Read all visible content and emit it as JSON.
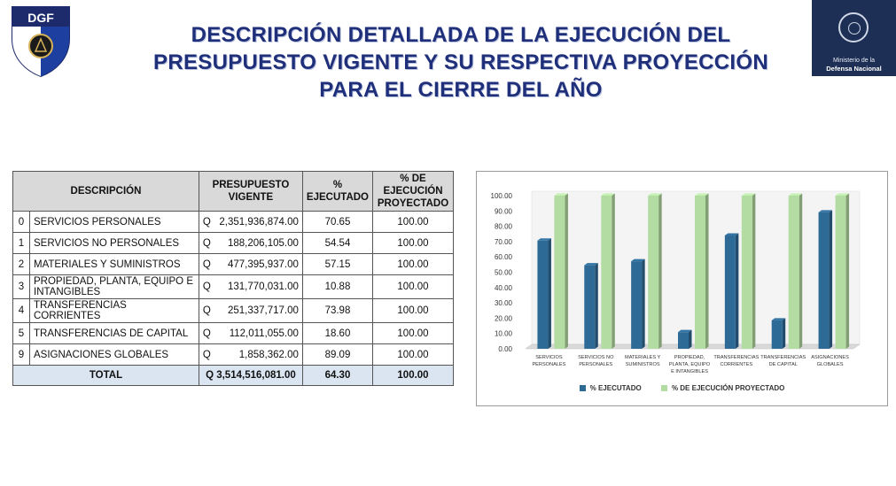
{
  "logos": {
    "dgf_text": "DGF",
    "ministry_line1": "Ministerio de la",
    "ministry_line2": "Defensa Nacional"
  },
  "title": "DESCRIPCIÓN DETALLADA DE LA EJECUCIÓN DEL\nPRESUPUESTO VIGENTE Y SU RESPECTIVA PROYECCIÓN\nPARA EL CIERRE DEL AÑO",
  "table": {
    "headers": {
      "descripcion": "DESCRIPCIÓN",
      "presupuesto": "PRESUPUESTO VIGENTE",
      "ejecutado": "% EJECUTADO",
      "proyectado": "% DE EJECUCIÓN PROYECTADO"
    },
    "rows": [
      {
        "num": "0",
        "desc": "SERVICIOS PERSONALES",
        "q": "Q",
        "amount": "2,351,936,874.00",
        "pct": "70.65",
        "proj": "100.00"
      },
      {
        "num": "1",
        "desc": "SERVICIOS NO PERSONALES",
        "q": "Q",
        "amount": "188,206,105.00",
        "pct": "54.54",
        "proj": "100.00"
      },
      {
        "num": "2",
        "desc": "MATERIALES Y SUMINISTROS",
        "q": "Q",
        "amount": "477,395,937.00",
        "pct": "57.15",
        "proj": "100.00"
      },
      {
        "num": "3",
        "desc": "PROPIEDAD, PLANTA, EQUIPO E INTANGIBLES",
        "q": "Q",
        "amount": "131,770,031.00",
        "pct": "10.88",
        "proj": "100.00"
      },
      {
        "num": "4",
        "desc": "TRANSFERENCIAS CORRIENTES",
        "q": "Q",
        "amount": "251,337,717.00",
        "pct": "73.98",
        "proj": "100.00"
      },
      {
        "num": "5",
        "desc": "TRANSFERENCIAS DE CAPITAL",
        "q": "Q",
        "amount": "112,011,055.00",
        "pct": "18.60",
        "proj": "100.00"
      },
      {
        "num": "9",
        "desc": "ASIGNACIONES GLOBALES",
        "q": "Q",
        "amount": "1,858,362.00",
        "pct": "89.09",
        "proj": "100.00"
      }
    ],
    "total": {
      "label": "TOTAL",
      "amount": "Q 3,514,516,081.00",
      "pct": "64.30",
      "proj": "100.00"
    }
  },
  "chart_data": {
    "type": "bar",
    "categories": [
      [
        "SERVICIOS",
        "PERSONALES"
      ],
      [
        "SERVICIOS NO",
        "PERSONALES"
      ],
      [
        "MATERIALES Y",
        "SUMINISTROS"
      ],
      [
        "PROPIEDAD,",
        "PLANTA, EQUIPO",
        "E INTANGIBLES"
      ],
      [
        "TRANSFERENCIAS",
        "CORRIENTES"
      ],
      [
        "TRANSFERENCIAS",
        "DE CAPITAL"
      ],
      [
        "ASIGNACIONES",
        "GLOBALES"
      ]
    ],
    "series": [
      {
        "name": "% EJECUTADO",
        "color": "#2e6a96",
        "values": [
          70.65,
          54.54,
          57.15,
          10.88,
          73.98,
          18.6,
          89.09
        ]
      },
      {
        "name": "% DE EJECUCIÓN PROYECTADO",
        "color": "#b3dca2",
        "values": [
          100,
          100,
          100,
          100,
          100,
          100,
          100
        ]
      }
    ],
    "yticks": [
      "0.00",
      "10.00",
      "20.00",
      "30.00",
      "40.00",
      "50.00",
      "60.00",
      "70.00",
      "80.00",
      "90.00",
      "100.00"
    ],
    "ylim": [
      0,
      100
    ],
    "legend_position": "bottom",
    "grid": false,
    "style": "3d"
  }
}
